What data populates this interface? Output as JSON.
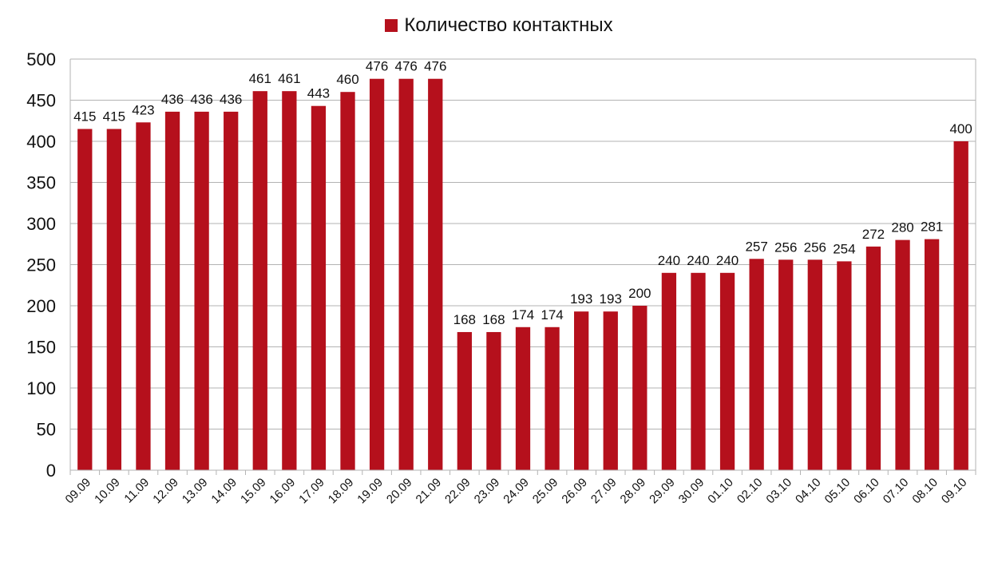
{
  "chart_data": {
    "type": "bar",
    "title": "",
    "xlabel": "",
    "ylabel": "",
    "ylim": [
      0,
      500
    ],
    "yticks": [
      0,
      50,
      100,
      150,
      200,
      250,
      300,
      350,
      400,
      450,
      500
    ],
    "grid": true,
    "legend_position": "top-center",
    "categories": [
      "09.09",
      "10.09",
      "11.09",
      "12.09",
      "13.09",
      "14.09",
      "15.09",
      "16.09",
      "17.09",
      "18.09",
      "19.09",
      "20.09",
      "21.09",
      "22.09",
      "23.09",
      "24.09",
      "25.09",
      "26.09",
      "27.09",
      "28.09",
      "29.09",
      "30.09",
      "01.10",
      "02.10",
      "03.10",
      "04.10",
      "05.10",
      "06.10",
      "07.10",
      "08.10",
      "09.10"
    ],
    "series": [
      {
        "name": "Количество контактных",
        "color": "#b5101c",
        "values": [
          415,
          415,
          423,
          436,
          436,
          436,
          461,
          461,
          443,
          460,
          476,
          476,
          476,
          168,
          168,
          174,
          174,
          193,
          193,
          200,
          240,
          240,
          240,
          257,
          256,
          256,
          254,
          272,
          280,
          281,
          400
        ]
      }
    ]
  }
}
